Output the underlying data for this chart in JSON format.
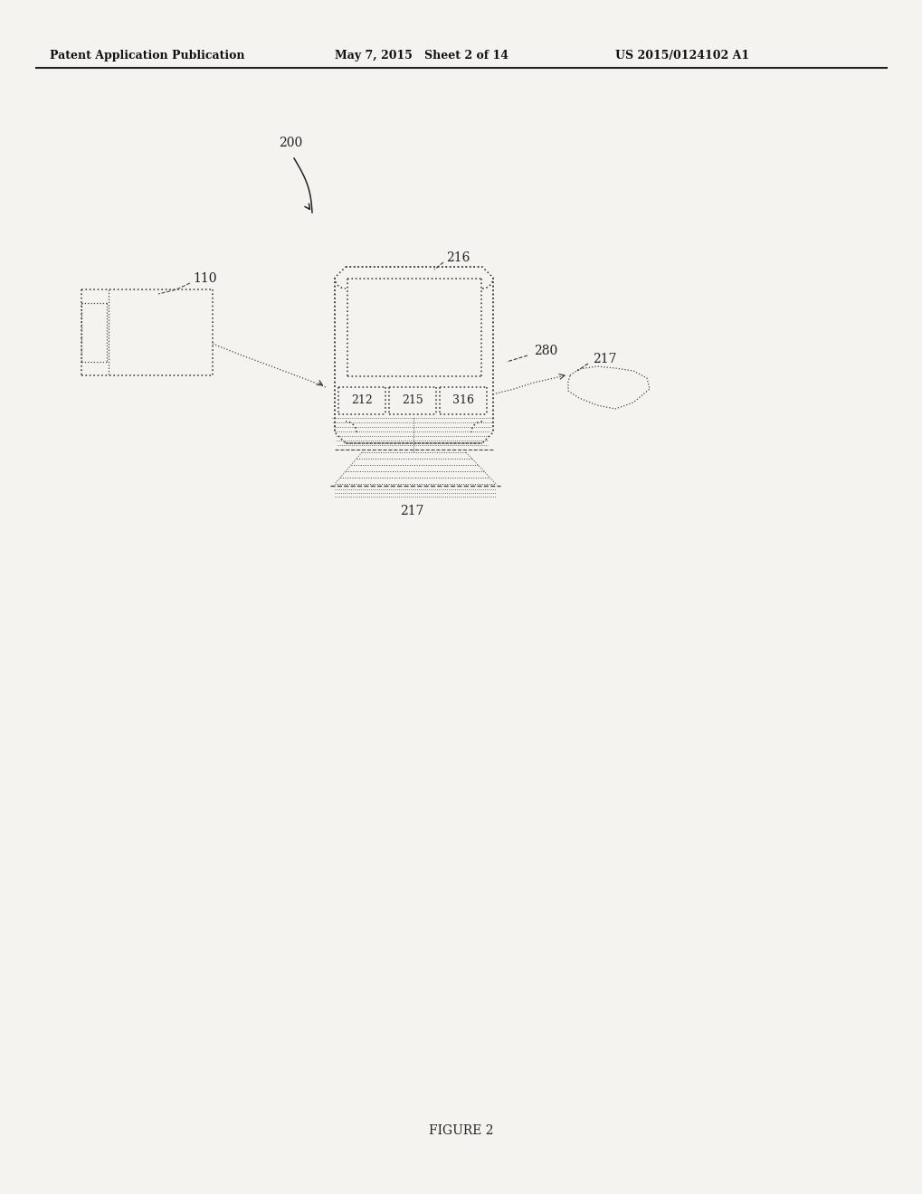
{
  "bg_color": "#f5f3ef",
  "header_left": "Patent Application Publication",
  "header_mid": "May 7, 2015   Sheet 2 of 14",
  "header_right": "US 2015/0124102 A1",
  "footer_label": "FIGURE 2",
  "label_200": "200",
  "label_110": "110",
  "label_216": "216",
  "label_280": "280",
  "label_217": "217",
  "label_212": "212",
  "label_215": "215",
  "label_316": "316",
  "label_217b": "217"
}
